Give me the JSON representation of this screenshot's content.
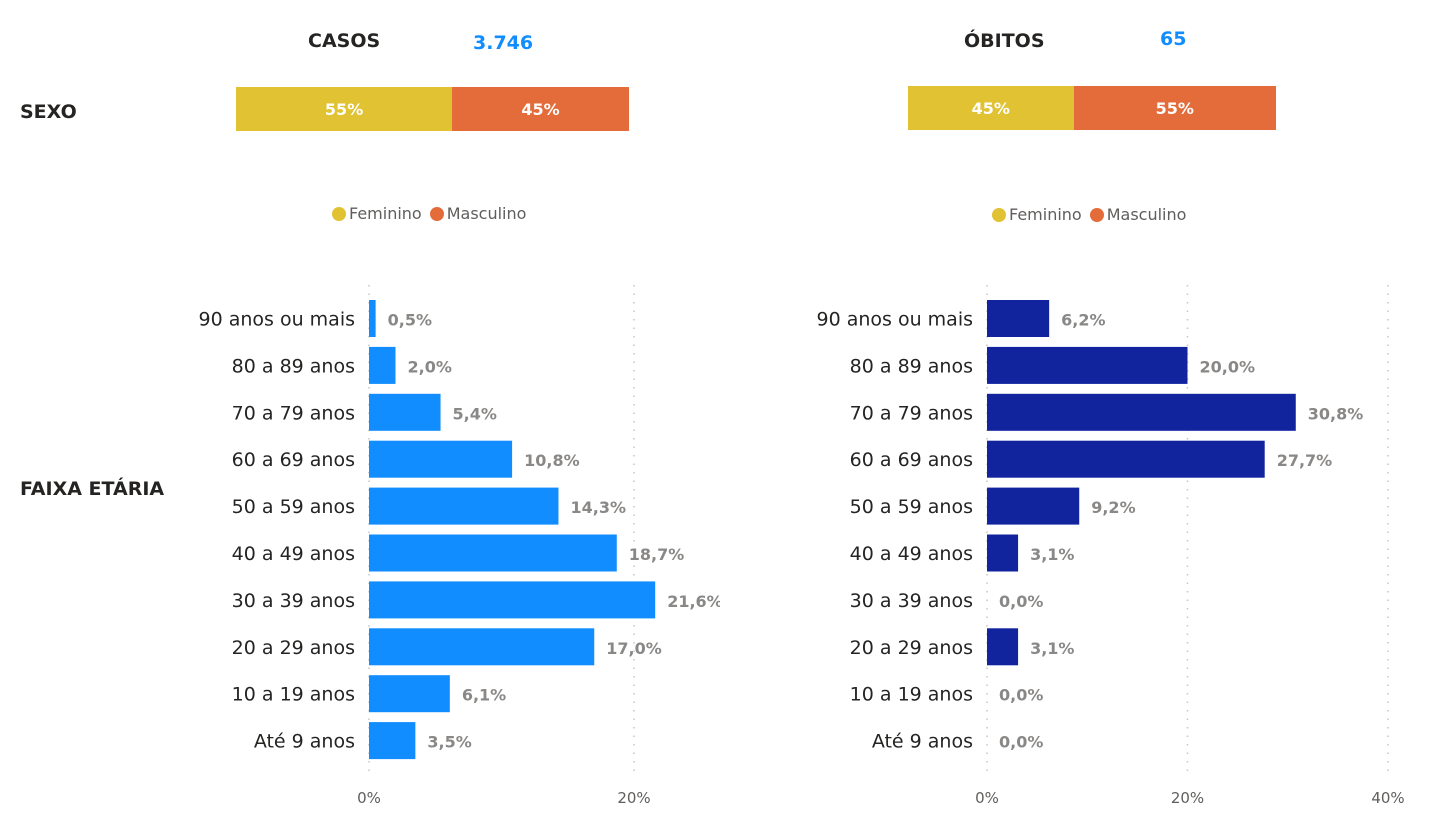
{
  "colors": {
    "feminino": "#E0C232",
    "masculino": "#E46C3A",
    "casos_bar": "#118DFF",
    "obitos_bar": "#12239E",
    "kpi_value": "#118DFF",
    "data_label": "#8A8886",
    "category_label": "#252423",
    "axis_tick": "#605E5C",
    "gridline": "#C8C6C4"
  },
  "sections": {
    "sexo_label": "SEXO",
    "faixa_label": "FAIXA ETÁRIA"
  },
  "casos": {
    "title": "CASOS",
    "total": "3.746",
    "sexo": [
      {
        "name": "Feminino",
        "value": 55,
        "label": "55%"
      },
      {
        "name": "Masculino",
        "value": 45,
        "label": "45%"
      }
    ],
    "legend": [
      "Feminino",
      "Masculino"
    ]
  },
  "obitos": {
    "title": "ÓBITOS",
    "total": "65",
    "sexo": [
      {
        "name": "Feminino",
        "value": 45,
        "label": "45%"
      },
      {
        "name": "Masculino",
        "value": 55,
        "label": "55%"
      }
    ],
    "legend": [
      "Feminino",
      "Masculino"
    ]
  },
  "chart_data": [
    {
      "type": "bar",
      "orientation": "horizontal",
      "title": "CASOS - Faixa Etária",
      "categories": [
        "90 anos ou mais",
        "80 a 89 anos",
        "70 a 79 anos",
        "60 a 69 anos",
        "50 a 59 anos",
        "40 a 49 anos",
        "30 a 39 anos",
        "20 a 29 anos",
        "10 a 19 anos",
        "Até 9 anos"
      ],
      "values": [
        0.5,
        2.0,
        5.4,
        10.8,
        14.3,
        18.7,
        21.6,
        17.0,
        6.1,
        3.5
      ],
      "data_labels": [
        "0,5%",
        "2,0%",
        "5,4%",
        "10,8%",
        "14,3%",
        "18,7%",
        "21,6%",
        "17,0%",
        "6,1%",
        "3,5%"
      ],
      "xlim": [
        0,
        20
      ],
      "xticks": [
        "0%",
        "20%"
      ],
      "xtick_values": [
        0,
        20
      ],
      "grid": true,
      "xlabel": "",
      "ylabel": ""
    },
    {
      "type": "bar",
      "orientation": "horizontal",
      "title": "ÓBITOS - Faixa Etária",
      "categories": [
        "90 anos ou mais",
        "80 a 89 anos",
        "70 a 79 anos",
        "60 a 69 anos",
        "50 a 59 anos",
        "40 a 49 anos",
        "30 a 39 anos",
        "20 a 29 anos",
        "10 a 19 anos",
        "Até 9 anos"
      ],
      "values": [
        6.2,
        20.0,
        30.8,
        27.7,
        9.2,
        3.1,
        0.0,
        3.1,
        0.0,
        0.0
      ],
      "data_labels": [
        "6,2%",
        "20,0%",
        "30,8%",
        "27,7%",
        "9,2%",
        "3,1%",
        "0,0%",
        "3,1%",
        "0,0%",
        "0,0%"
      ],
      "xlim": [
        0,
        40
      ],
      "xticks": [
        "0%",
        "20%",
        "40%"
      ],
      "xtick_values": [
        0,
        20,
        40
      ],
      "grid": true,
      "xlabel": "",
      "ylabel": ""
    },
    {
      "type": "bar",
      "orientation": "horizontal-stacked-100",
      "title": "CASOS - Sexo",
      "categories": [
        "Feminino",
        "Masculino"
      ],
      "values": [
        55,
        45
      ],
      "legend": "bottom-center"
    },
    {
      "type": "bar",
      "orientation": "horizontal-stacked-100",
      "title": "ÓBITOS - Sexo",
      "categories": [
        "Feminino",
        "Masculino"
      ],
      "values": [
        45,
        55
      ],
      "legend": "bottom-center"
    }
  ]
}
